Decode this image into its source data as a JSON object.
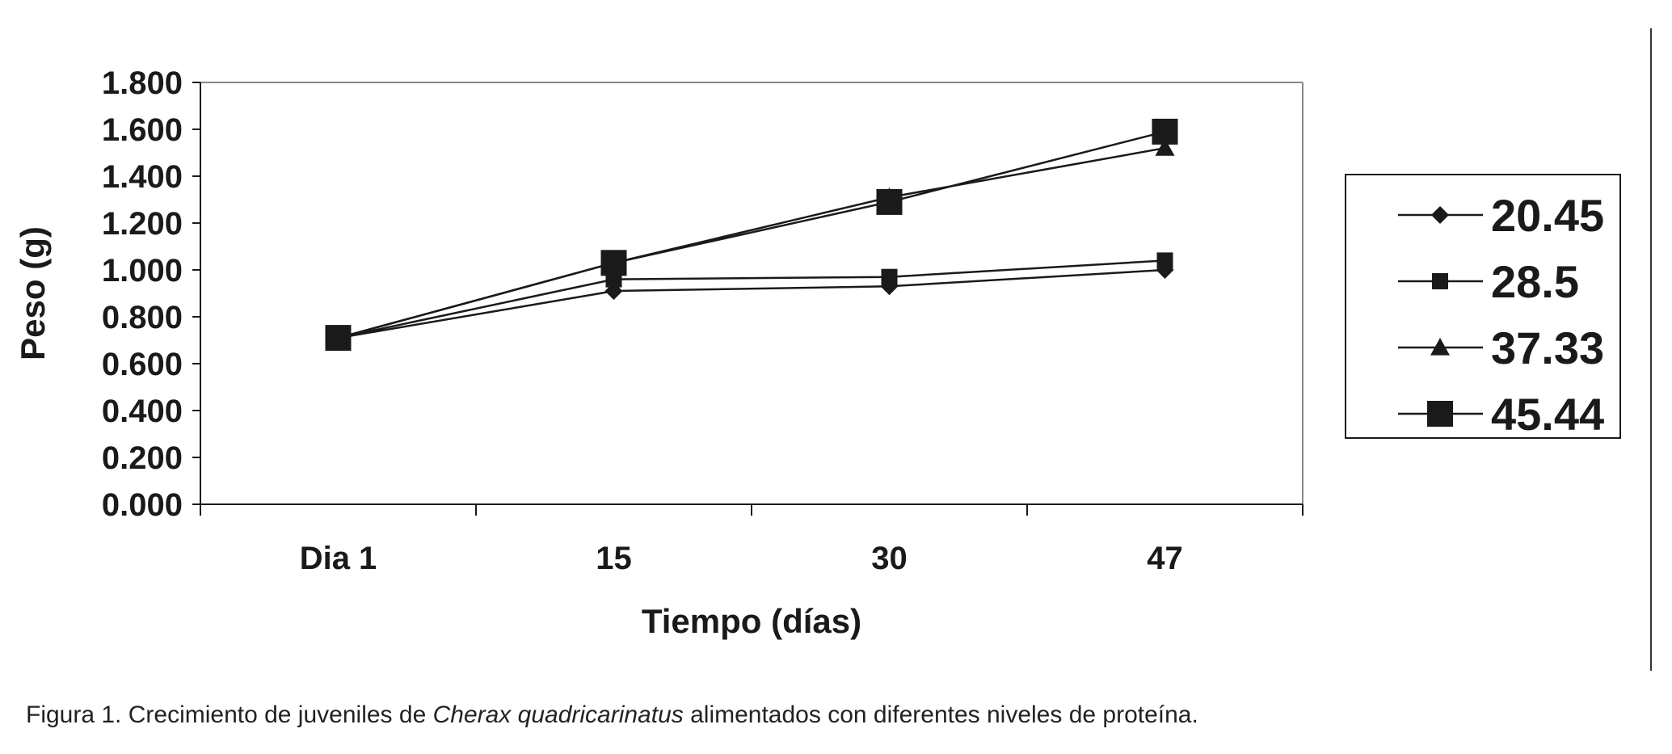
{
  "caption": {
    "prefix": "Figura 1. Crecimiento de juveniles de ",
    "species": "Cherax quadricarinatus",
    "suffix": " alimentados con diferentes niveles de proteína."
  },
  "chart_data": {
    "type": "line",
    "categories": [
      "Dia 1",
      "15",
      "30",
      "47"
    ],
    "xlabel": "Tiempo (días)",
    "ylabel": "Peso (g)",
    "ylim": [
      0,
      1.8
    ],
    "yticks": [
      "0.000",
      "0.200",
      "0.400",
      "0.600",
      "0.800",
      "1.000",
      "1.200",
      "1.400",
      "1.600",
      "1.800"
    ],
    "grid": false,
    "legend_position": "right",
    "line_color": "#1a1a1a",
    "series": [
      {
        "name": "20.45",
        "marker": "diamond",
        "values": [
          0.71,
          0.91,
          0.93,
          1.0
        ]
      },
      {
        "name": "28.5",
        "marker": "small-square",
        "values": [
          0.71,
          0.96,
          0.97,
          1.04
        ]
      },
      {
        "name": "37.33",
        "marker": "triangle",
        "values": [
          0.71,
          1.03,
          1.31,
          1.52
        ]
      },
      {
        "name": "45.44",
        "marker": "large-square",
        "values": [
          0.71,
          1.03,
          1.29,
          1.59
        ]
      }
    ]
  }
}
